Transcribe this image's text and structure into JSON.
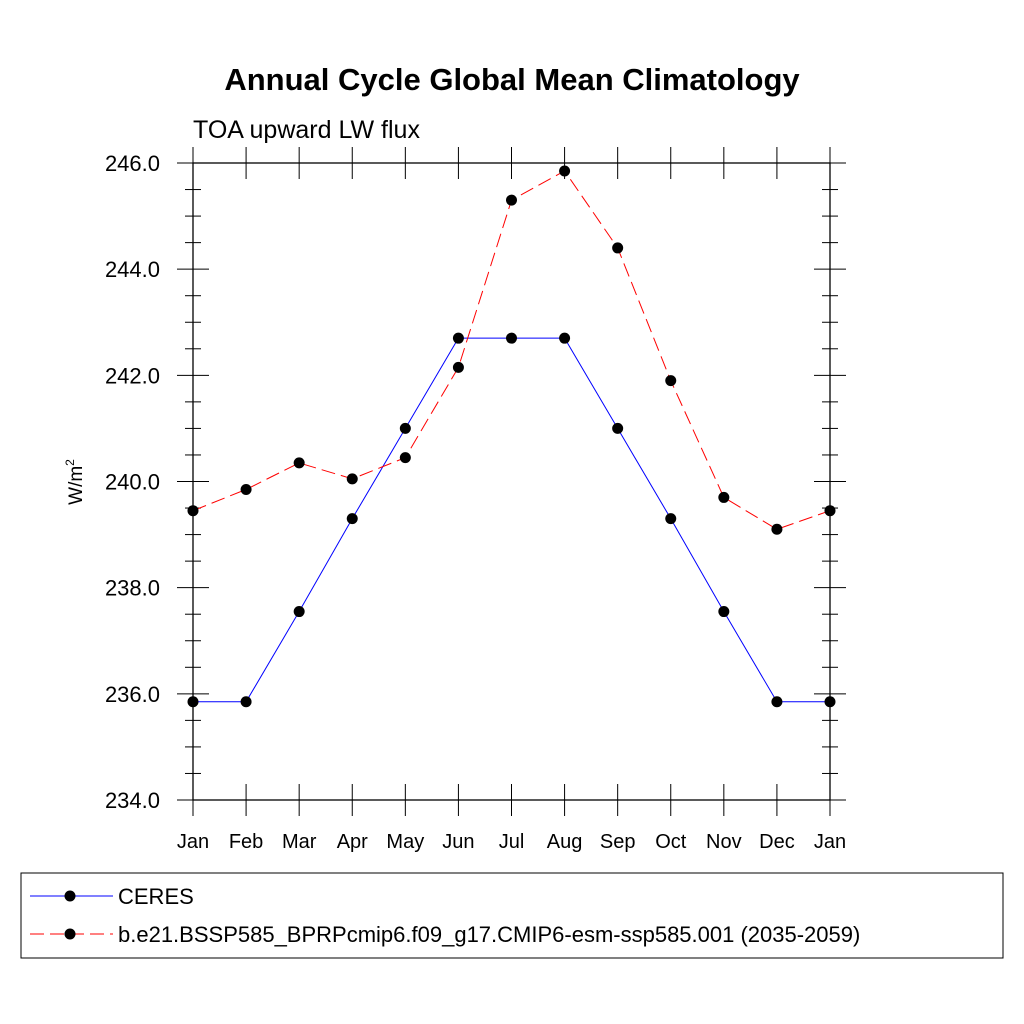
{
  "chart_data": {
    "type": "line",
    "title": "Annual Cycle Global Mean Climatology",
    "subtitle": "TOA upward LW flux",
    "ylabel": "W/m",
    "ylabel_sup": "2",
    "xlabel": "",
    "ylim": [
      234.0,
      246.0
    ],
    "yticks": [
      "234.0",
      "236.0",
      "238.0",
      "240.0",
      "242.0",
      "244.0",
      "246.0"
    ],
    "ytick_values": [
      234,
      236,
      238,
      240,
      242,
      244,
      246
    ],
    "categories": [
      "Jan",
      "Feb",
      "Mar",
      "Apr",
      "May",
      "Jun",
      "Jul",
      "Aug",
      "Sep",
      "Oct",
      "Nov",
      "Dec",
      "Jan"
    ],
    "series": [
      {
        "name": "CERES",
        "color": "#0000ff",
        "dash": "solid",
        "values": [
          235.85,
          235.85,
          237.55,
          239.3,
          241.0,
          242.7,
          242.7,
          242.7,
          241.0,
          239.3,
          237.55,
          235.85,
          235.85
        ]
      },
      {
        "name": "b.e21.BSSP585_BPRPcmip6.f09_g17.CMIP6-esm-ssp585.001 (2035-2059)",
        "color": "#ff0000",
        "dash": "dashed",
        "values": [
          239.45,
          239.85,
          240.35,
          240.05,
          240.45,
          242.15,
          245.3,
          245.85,
          244.4,
          241.9,
          239.7,
          239.1,
          239.45
        ]
      }
    ],
    "legend": "bottom"
  }
}
